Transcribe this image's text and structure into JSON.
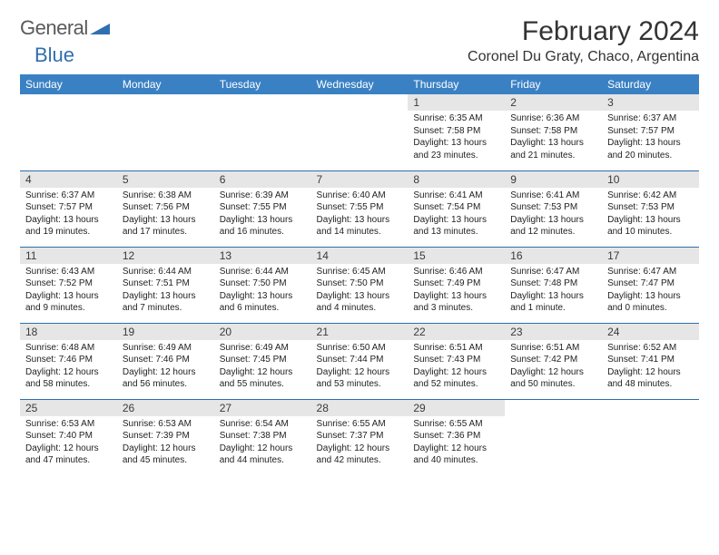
{
  "brand": {
    "part1": "General",
    "part2": "Blue"
  },
  "title": "February 2024",
  "location": "Coronel Du Graty, Chaco, Argentina",
  "headers": [
    "Sunday",
    "Monday",
    "Tuesday",
    "Wednesday",
    "Thursday",
    "Friday",
    "Saturday"
  ],
  "colors": {
    "header_bg": "#3a81c4",
    "header_fg": "#ffffff",
    "daynum_bg": "#e6e6e6",
    "rule": "#2f6fb0",
    "logo_gray": "#5a5a5a",
    "logo_blue": "#2f6fb0"
  },
  "weeks": [
    [
      null,
      null,
      null,
      null,
      {
        "n": "1",
        "sr": "6:35 AM",
        "ss": "7:58 PM",
        "dl": "13 hours and 23 minutes."
      },
      {
        "n": "2",
        "sr": "6:36 AM",
        "ss": "7:58 PM",
        "dl": "13 hours and 21 minutes."
      },
      {
        "n": "3",
        "sr": "6:37 AM",
        "ss": "7:57 PM",
        "dl": "13 hours and 20 minutes."
      }
    ],
    [
      {
        "n": "4",
        "sr": "6:37 AM",
        "ss": "7:57 PM",
        "dl": "13 hours and 19 minutes."
      },
      {
        "n": "5",
        "sr": "6:38 AM",
        "ss": "7:56 PM",
        "dl": "13 hours and 17 minutes."
      },
      {
        "n": "6",
        "sr": "6:39 AM",
        "ss": "7:55 PM",
        "dl": "13 hours and 16 minutes."
      },
      {
        "n": "7",
        "sr": "6:40 AM",
        "ss": "7:55 PM",
        "dl": "13 hours and 14 minutes."
      },
      {
        "n": "8",
        "sr": "6:41 AM",
        "ss": "7:54 PM",
        "dl": "13 hours and 13 minutes."
      },
      {
        "n": "9",
        "sr": "6:41 AM",
        "ss": "7:53 PM",
        "dl": "13 hours and 12 minutes."
      },
      {
        "n": "10",
        "sr": "6:42 AM",
        "ss": "7:53 PM",
        "dl": "13 hours and 10 minutes."
      }
    ],
    [
      {
        "n": "11",
        "sr": "6:43 AM",
        "ss": "7:52 PM",
        "dl": "13 hours and 9 minutes."
      },
      {
        "n": "12",
        "sr": "6:44 AM",
        "ss": "7:51 PM",
        "dl": "13 hours and 7 minutes."
      },
      {
        "n": "13",
        "sr": "6:44 AM",
        "ss": "7:50 PM",
        "dl": "13 hours and 6 minutes."
      },
      {
        "n": "14",
        "sr": "6:45 AM",
        "ss": "7:50 PM",
        "dl": "13 hours and 4 minutes."
      },
      {
        "n": "15",
        "sr": "6:46 AM",
        "ss": "7:49 PM",
        "dl": "13 hours and 3 minutes."
      },
      {
        "n": "16",
        "sr": "6:47 AM",
        "ss": "7:48 PM",
        "dl": "13 hours and 1 minute."
      },
      {
        "n": "17",
        "sr": "6:47 AM",
        "ss": "7:47 PM",
        "dl": "13 hours and 0 minutes."
      }
    ],
    [
      {
        "n": "18",
        "sr": "6:48 AM",
        "ss": "7:46 PM",
        "dl": "12 hours and 58 minutes."
      },
      {
        "n": "19",
        "sr": "6:49 AM",
        "ss": "7:46 PM",
        "dl": "12 hours and 56 minutes."
      },
      {
        "n": "20",
        "sr": "6:49 AM",
        "ss": "7:45 PM",
        "dl": "12 hours and 55 minutes."
      },
      {
        "n": "21",
        "sr": "6:50 AM",
        "ss": "7:44 PM",
        "dl": "12 hours and 53 minutes."
      },
      {
        "n": "22",
        "sr": "6:51 AM",
        "ss": "7:43 PM",
        "dl": "12 hours and 52 minutes."
      },
      {
        "n": "23",
        "sr": "6:51 AM",
        "ss": "7:42 PM",
        "dl": "12 hours and 50 minutes."
      },
      {
        "n": "24",
        "sr": "6:52 AM",
        "ss": "7:41 PM",
        "dl": "12 hours and 48 minutes."
      }
    ],
    [
      {
        "n": "25",
        "sr": "6:53 AM",
        "ss": "7:40 PM",
        "dl": "12 hours and 47 minutes."
      },
      {
        "n": "26",
        "sr": "6:53 AM",
        "ss": "7:39 PM",
        "dl": "12 hours and 45 minutes."
      },
      {
        "n": "27",
        "sr": "6:54 AM",
        "ss": "7:38 PM",
        "dl": "12 hours and 44 minutes."
      },
      {
        "n": "28",
        "sr": "6:55 AM",
        "ss": "7:37 PM",
        "dl": "12 hours and 42 minutes."
      },
      {
        "n": "29",
        "sr": "6:55 AM",
        "ss": "7:36 PM",
        "dl": "12 hours and 40 minutes."
      },
      null,
      null
    ]
  ],
  "labels": {
    "sunrise": "Sunrise: ",
    "sunset": "Sunset: ",
    "daylight": "Daylight: "
  }
}
